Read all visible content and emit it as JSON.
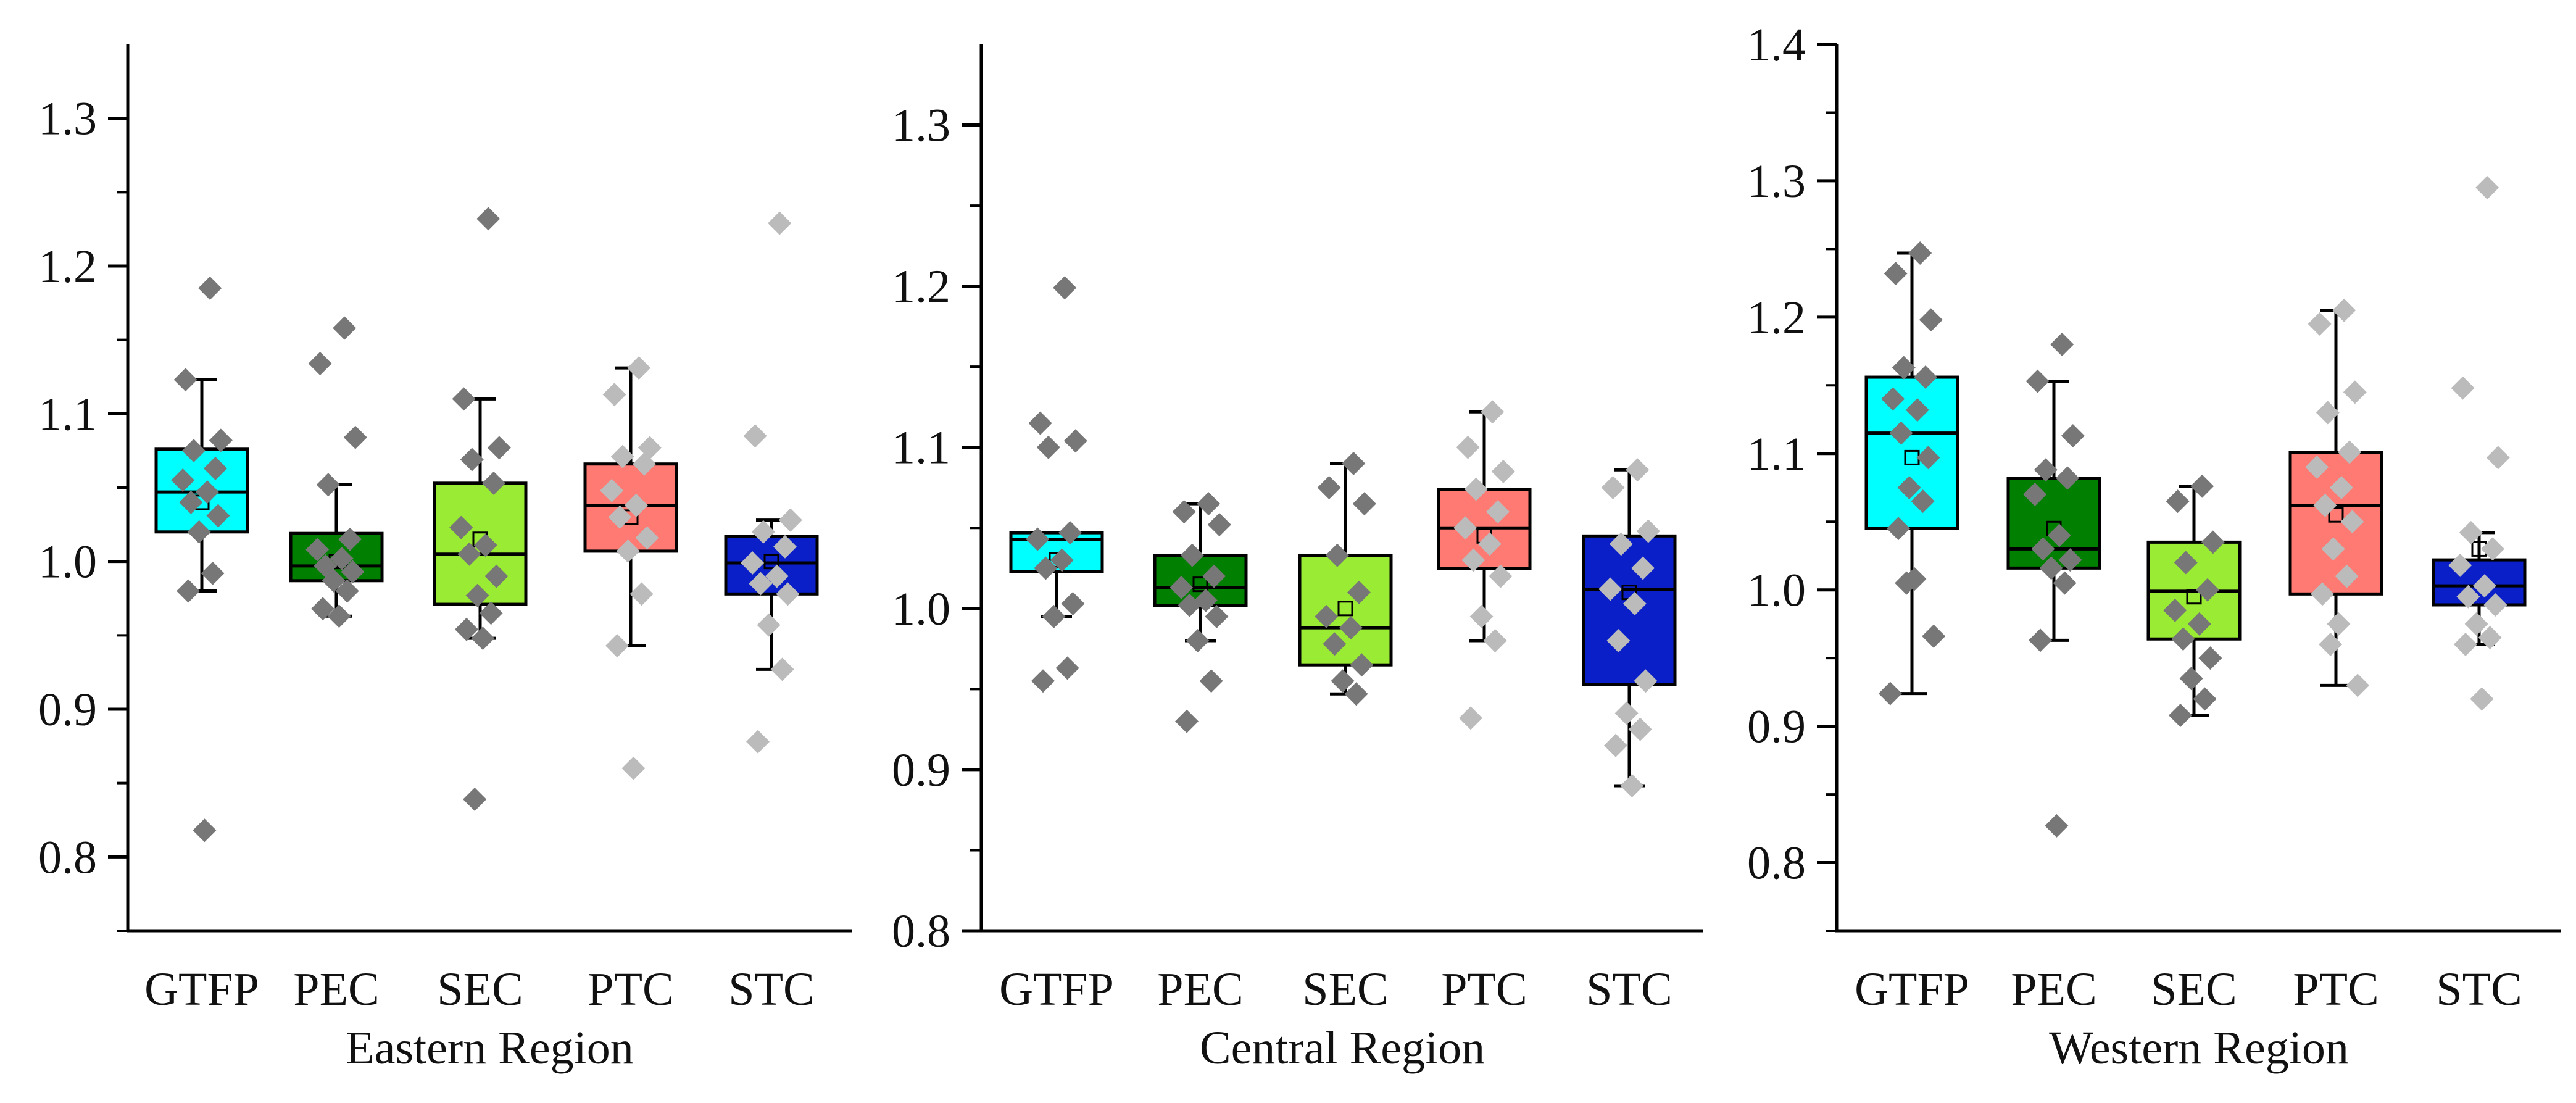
{
  "chart_data": [
    {
      "type": "box",
      "xlabel": "Eastern Region",
      "ylim": [
        0.75,
        1.35
      ],
      "yticks": [
        0.8,
        0.9,
        1.0,
        1.1,
        1.2,
        1.3
      ],
      "ytick_labels": [
        "0.8",
        "0.9",
        "1.0",
        "1.1",
        "1.2",
        "1.3"
      ],
      "categories": [
        "GTFP",
        "PEC",
        "SEC",
        "PTC",
        "STC"
      ],
      "boxes": [
        {
          "name": "GTFP",
          "color": "#00ffff",
          "whisker_low": 0.98,
          "q1": 1.02,
          "median": 1.047,
          "q3": 1.076,
          "whisker_high": 1.123,
          "mean": 1.04,
          "point_color": "#777777",
          "points": [
            1.185,
            1.123,
            1.082,
            1.075,
            1.063,
            1.055,
            1.047,
            1.04,
            1.031,
            1.02,
            0.992,
            0.98,
            0.818
          ]
        },
        {
          "name": "PEC",
          "color": "#007f00",
          "whisker_low": 0.963,
          "q1": 0.987,
          "median": 0.997,
          "q3": 1.019,
          "whisker_high": 1.052,
          "mean": 1.0,
          "point_color": "#777777",
          "points": [
            1.158,
            1.134,
            1.084,
            1.052,
            1.015,
            1.008,
            1.002,
            0.997,
            0.993,
            0.987,
            0.98,
            0.968,
            0.963
          ]
        },
        {
          "name": "SEC",
          "color": "#9aeb33",
          "whisker_low": 0.948,
          "q1": 0.971,
          "median": 1.005,
          "q3": 1.053,
          "whisker_high": 1.11,
          "mean": 1.015,
          "point_color": "#777777",
          "points": [
            1.232,
            1.11,
            1.077,
            1.069,
            1.053,
            1.023,
            1.011,
            1.005,
            0.99,
            0.977,
            0.965,
            0.954,
            0.948,
            0.839
          ]
        },
        {
          "name": "PTC",
          "color": "#ff7a73",
          "whisker_low": 0.943,
          "q1": 1.007,
          "median": 1.038,
          "q3": 1.066,
          "whisker_high": 1.131,
          "mean": 1.03,
          "point_color": "#bbbbbb",
          "points": [
            1.131,
            1.113,
            1.077,
            1.071,
            1.066,
            1.048,
            1.038,
            1.03,
            1.016,
            1.007,
            0.978,
            0.943,
            0.86
          ]
        },
        {
          "name": "STC",
          "color": "#0a1fc8",
          "whisker_low": 0.927,
          "q1": 0.978,
          "median": 0.999,
          "q3": 1.017,
          "whisker_high": 1.028,
          "mean": 1.0,
          "point_color": "#bbbbbb",
          "points": [
            1.229,
            1.085,
            1.028,
            1.02,
            1.01,
            0.999,
            0.99,
            0.985,
            0.978,
            0.957,
            0.927,
            0.878
          ]
        }
      ]
    },
    {
      "type": "box",
      "xlabel": "Central Region",
      "ylim": [
        0.8,
        1.35
      ],
      "yticks": [
        0.8,
        0.9,
        1.0,
        1.1,
        1.2,
        1.3
      ],
      "ytick_labels": [
        "0.8",
        "0.9",
        "1.0",
        "1.1",
        "1.2",
        "1.3"
      ],
      "categories": [
        "GTFP",
        "PEC",
        "SEC",
        "PTC",
        "STC"
      ],
      "boxes": [
        {
          "name": "GTFP",
          "color": "#00ffff",
          "whisker_low": 0.995,
          "q1": 1.023,
          "median": 1.043,
          "q3": 1.047,
          "whisker_high": 1.047,
          "mean": 1.03,
          "point_color": "#777777",
          "points": [
            1.199,
            1.115,
            1.104,
            1.1,
            1.047,
            1.043,
            1.03,
            1.025,
            1.003,
            0.995,
            0.963,
            0.955
          ]
        },
        {
          "name": "PEC",
          "color": "#007f00",
          "whisker_low": 0.98,
          "q1": 1.002,
          "median": 1.013,
          "q3": 1.033,
          "whisker_high": 1.065,
          "mean": 1.015,
          "point_color": "#777777",
          "points": [
            1.065,
            1.06,
            1.052,
            1.033,
            1.02,
            1.013,
            1.005,
            1.002,
            0.995,
            0.98,
            0.955,
            0.93
          ]
        },
        {
          "name": "SEC",
          "color": "#9aeb33",
          "whisker_low": 0.947,
          "q1": 0.965,
          "median": 0.988,
          "q3": 1.033,
          "whisker_high": 1.09,
          "mean": 1.0,
          "point_color": "#777777",
          "points": [
            1.09,
            1.075,
            1.065,
            1.033,
            1.01,
            0.995,
            0.988,
            0.978,
            0.965,
            0.955,
            0.947
          ]
        },
        {
          "name": "PTC",
          "color": "#ff7a73",
          "whisker_low": 0.98,
          "q1": 1.025,
          "median": 1.05,
          "q3": 1.074,
          "whisker_high": 1.122,
          "mean": 1.045,
          "point_color": "#bbbbbb",
          "points": [
            1.122,
            1.1,
            1.085,
            1.074,
            1.06,
            1.05,
            1.04,
            1.03,
            1.02,
            0.995,
            0.98,
            0.932
          ]
        },
        {
          "name": "STC",
          "color": "#0a1fc8",
          "whisker_low": 0.89,
          "q1": 0.953,
          "median": 1.012,
          "q3": 1.045,
          "whisker_high": 1.086,
          "mean": 1.01,
          "point_color": "#bbbbbb",
          "points": [
            1.086,
            1.075,
            1.048,
            1.04,
            1.025,
            1.012,
            1.003,
            0.98,
            0.955,
            0.935,
            0.925,
            0.915,
            0.89
          ]
        }
      ]
    },
    {
      "type": "box",
      "xlabel": "Western Region",
      "ylim": [
        0.75,
        1.4
      ],
      "yticks": [
        0.8,
        0.9,
        1.0,
        1.1,
        1.2,
        1.3,
        1.4
      ],
      "ytick_labels": [
        "0.8",
        "0.9",
        "1.0",
        "1.1",
        "1.2",
        "1.3",
        "1.4"
      ],
      "categories": [
        "GTFP",
        "PEC",
        "SEC",
        "PTC",
        "STC"
      ],
      "boxes": [
        {
          "name": "GTFP",
          "color": "#00ffff",
          "whisker_low": 0.924,
          "q1": 1.045,
          "median": 1.115,
          "q3": 1.156,
          "whisker_high": 1.247,
          "mean": 1.097,
          "point_color": "#777777",
          "points": [
            1.247,
            1.232,
            1.198,
            1.163,
            1.156,
            1.14,
            1.132,
            1.115,
            1.097,
            1.075,
            1.065,
            1.045,
            1.008,
            1.005,
            0.966,
            0.924
          ]
        },
        {
          "name": "PEC",
          "color": "#007f00",
          "whisker_low": 0.963,
          "q1": 1.016,
          "median": 1.03,
          "q3": 1.082,
          "whisker_high": 1.153,
          "mean": 1.045,
          "point_color": "#777777",
          "points": [
            1.18,
            1.153,
            1.113,
            1.088,
            1.082,
            1.07,
            1.04,
            1.03,
            1.022,
            1.016,
            1.005,
            0.963,
            0.827
          ]
        },
        {
          "name": "SEC",
          "color": "#9aeb33",
          "whisker_low": 0.908,
          "q1": 0.964,
          "median": 0.999,
          "q3": 1.035,
          "whisker_high": 1.076,
          "mean": 0.995,
          "point_color": "#777777",
          "points": [
            1.076,
            1.065,
            1.035,
            1.02,
            1.0,
            0.985,
            0.975,
            0.964,
            0.95,
            0.935,
            0.92,
            0.908
          ]
        },
        {
          "name": "PTC",
          "color": "#ff7a73",
          "whisker_low": 0.93,
          "q1": 0.997,
          "median": 1.062,
          "q3": 1.101,
          "whisker_high": 1.205,
          "mean": 1.055,
          "point_color": "#bbbbbb",
          "points": [
            1.205,
            1.195,
            1.145,
            1.13,
            1.101,
            1.09,
            1.075,
            1.062,
            1.05,
            1.03,
            1.01,
            0.997,
            0.975,
            0.96,
            0.93
          ]
        },
        {
          "name": "STC",
          "color": "#0a1fc8",
          "whisker_low": 0.96,
          "q1": 0.989,
          "median": 1.003,
          "q3": 1.022,
          "whisker_high": 1.042,
          "mean": 1.03,
          "point_color": "#bbbbbb",
          "points": [
            1.295,
            1.148,
            1.097,
            1.042,
            1.03,
            1.018,
            1.003,
            0.995,
            0.989,
            0.975,
            0.965,
            0.96,
            0.92
          ]
        }
      ]
    }
  ]
}
